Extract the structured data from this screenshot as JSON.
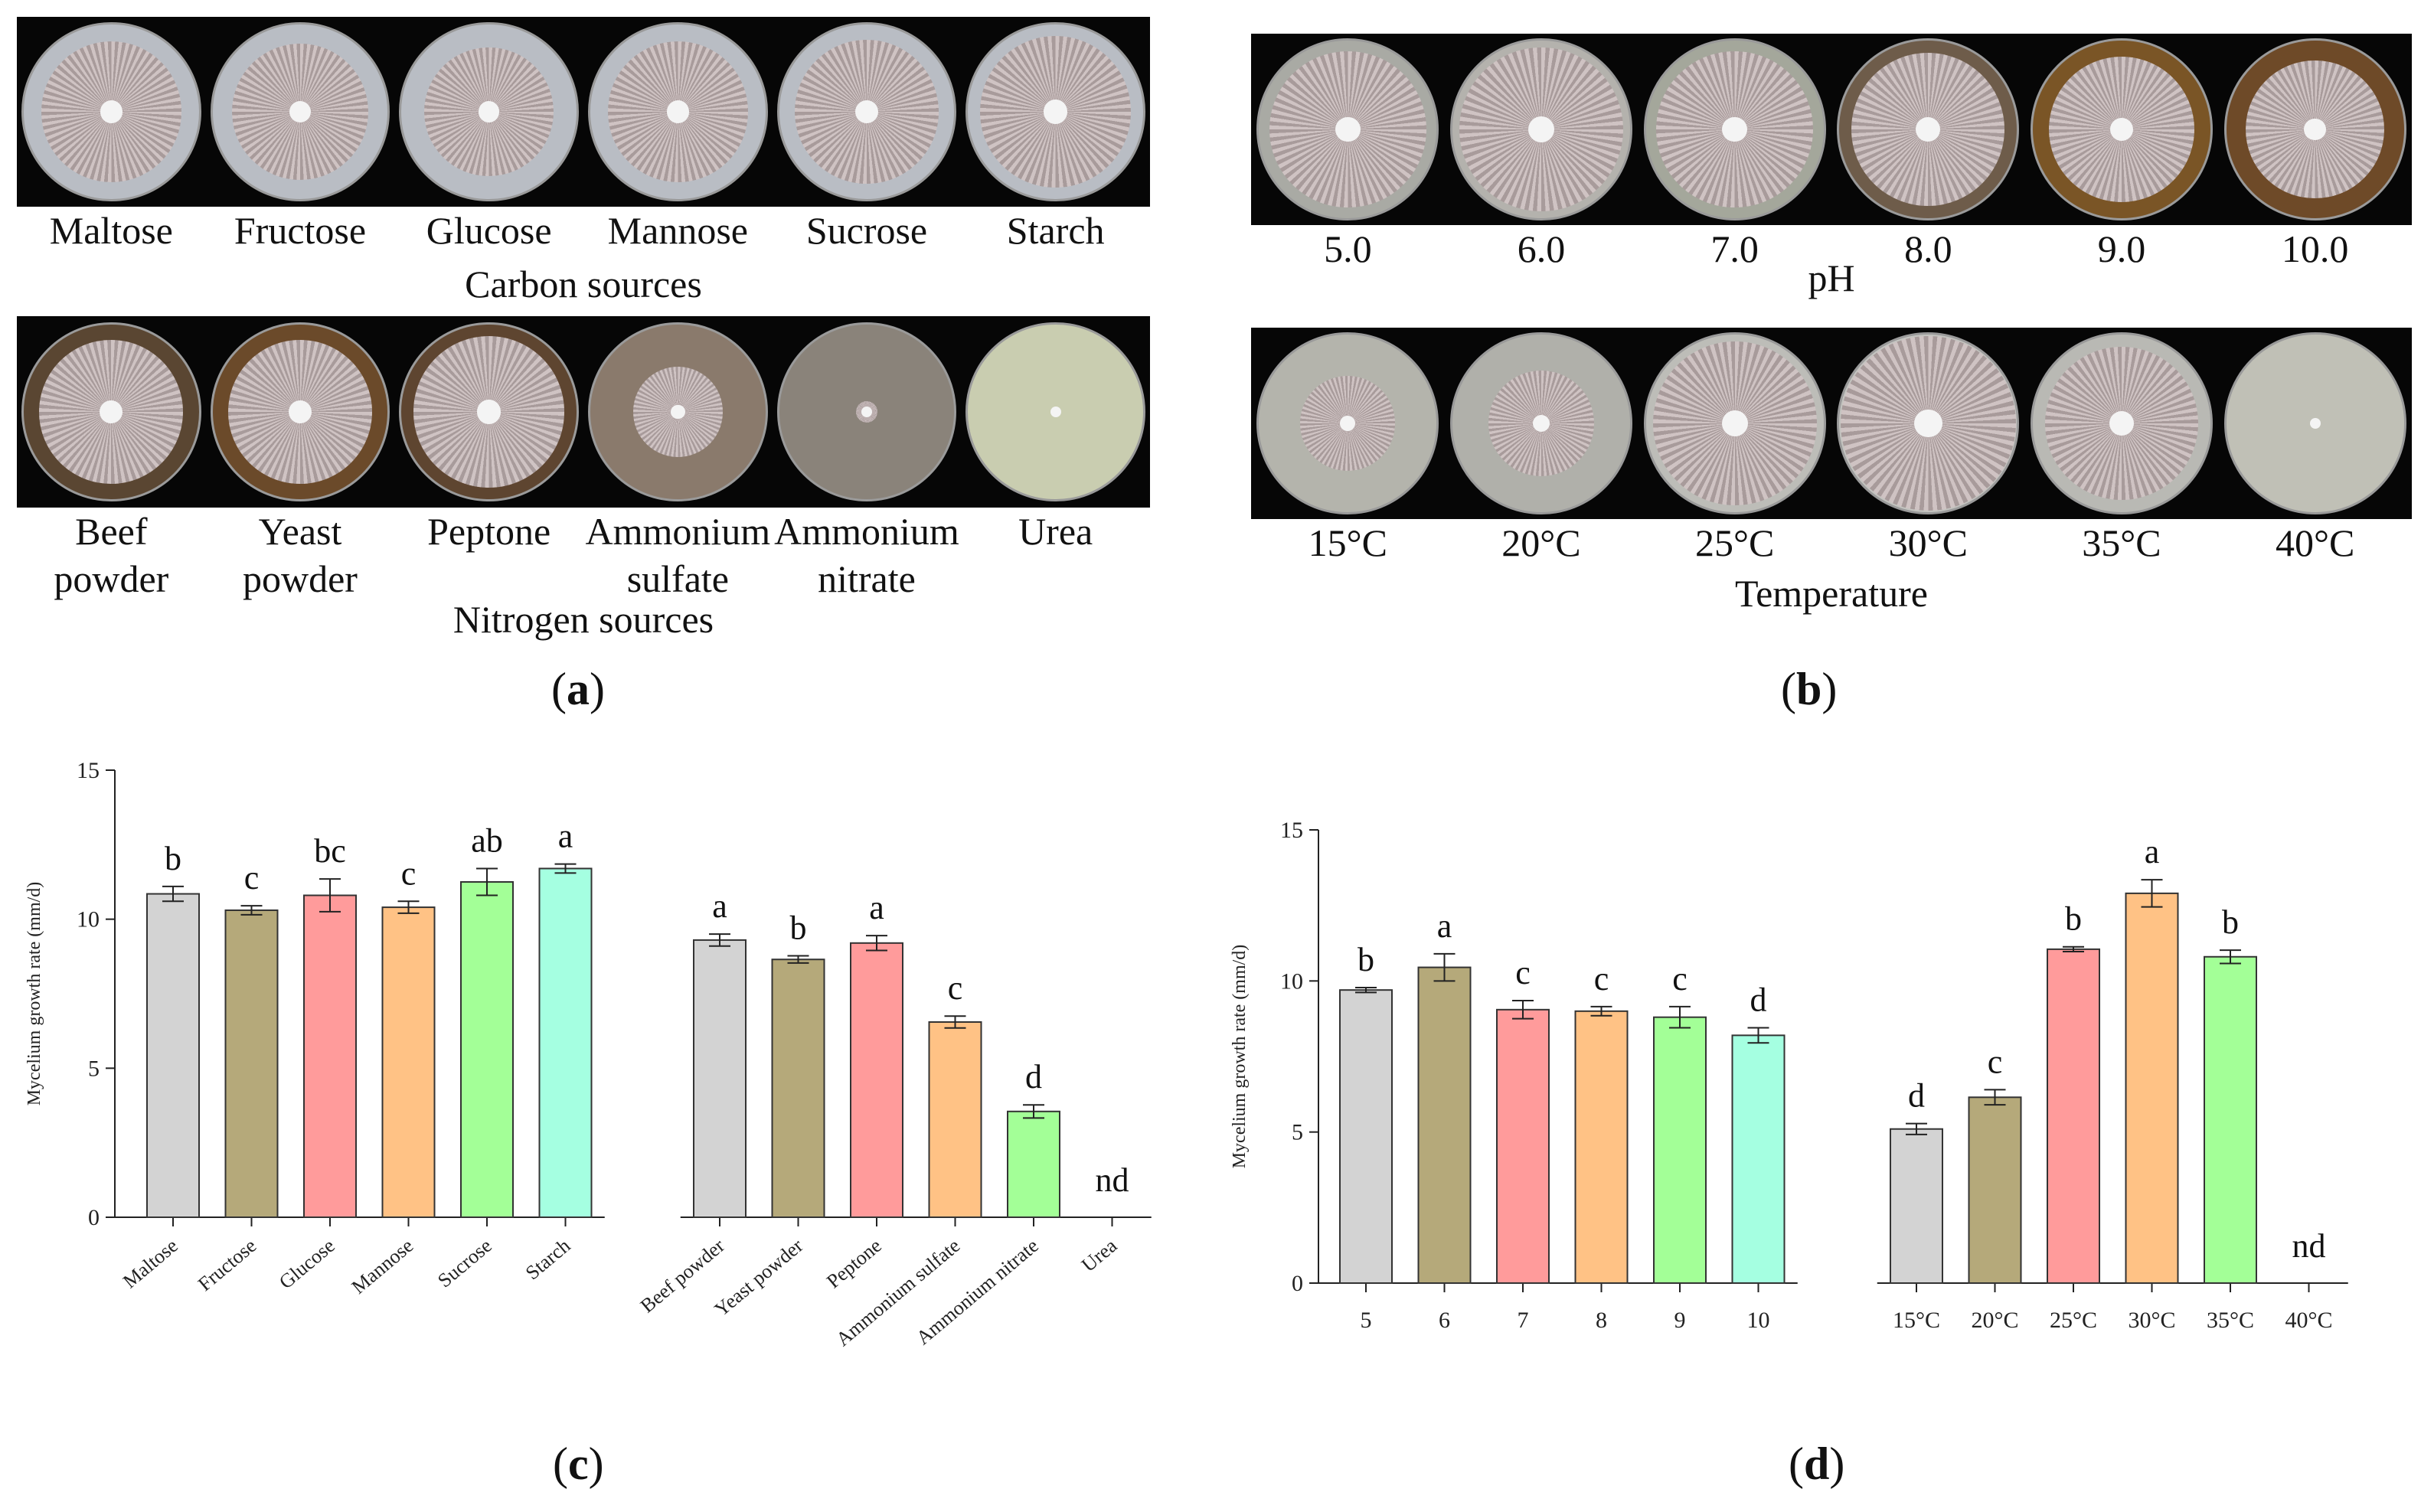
{
  "panel_a": {
    "letter": "a",
    "carbon": {
      "title": "Carbon sources",
      "labels": [
        "Maltose",
        "Fructose",
        "Glucose",
        "Mannose",
        "Sucrose",
        "Starch"
      ]
    },
    "nitrogen": {
      "title": "Nitrogen sources",
      "labels": [
        [
          "Beef",
          "powder"
        ],
        [
          "Yeast",
          "powder"
        ],
        [
          "Peptone",
          ""
        ],
        [
          "Ammonium",
          "sulfate"
        ],
        [
          "Ammonium",
          "nitrate"
        ],
        [
          "Urea",
          ""
        ]
      ]
    }
  },
  "panel_b": {
    "letter": "b",
    "ph": {
      "title": "pH",
      "labels": [
        "5.0",
        "6.0",
        "7.0",
        "8.0",
        "9.0",
        "10.0"
      ]
    },
    "temp": {
      "title": "Temperature",
      "labels": [
        "15°C",
        "20°C",
        "25°C",
        "30°C",
        "35°C",
        "40°C"
      ]
    }
  },
  "panel_c": {
    "letter": "c"
  },
  "panel_d": {
    "letter": "d"
  },
  "colors": {
    "bars": [
      "#d3d3d3",
      "#b5a97a",
      "#ff9b9b",
      "#ffc285",
      "#a3ff97",
      "#a5ffe1"
    ],
    "background_strip": "#060606"
  },
  "chart_data": [
    {
      "id": "c",
      "type": "bar",
      "ylabel": "Mycelium growth rate (mm/d)",
      "xlabel": "",
      "ylim": [
        0,
        15
      ],
      "yticks": [
        0,
        5,
        10,
        15
      ],
      "groups": [
        {
          "categories": [
            "Maltose",
            "Fructose",
            "Glucose",
            "Mannose",
            "Sucrose",
            "Starch"
          ],
          "values": [
            10.85,
            10.3,
            10.8,
            10.4,
            11.25,
            11.7
          ],
          "errors": [
            0.25,
            0.15,
            0.55,
            0.2,
            0.45,
            0.15
          ],
          "letters": [
            "b",
            "c",
            "bc",
            "c",
            "ab",
            "a"
          ]
        },
        {
          "categories": [
            "Beef powder",
            "Yeast powder",
            "Peptone",
            "Ammonium sulfate",
            "Ammonium nitrate",
            "Urea"
          ],
          "values": [
            9.3,
            8.65,
            9.2,
            6.55,
            3.55,
            0
          ],
          "errors": [
            0.2,
            0.12,
            0.25,
            0.2,
            0.22,
            0
          ],
          "letters": [
            "a",
            "b",
            "a",
            "c",
            "d",
            "nd"
          ]
        }
      ]
    },
    {
      "id": "d",
      "type": "bar",
      "ylabel": "Mycelium growth rate (mm/d)",
      "xlabel": "",
      "ylim": [
        0,
        15
      ],
      "yticks": [
        0,
        5,
        10,
        15
      ],
      "groups": [
        {
          "categories": [
            "5",
            "6",
            "7",
            "8",
            "9",
            "10"
          ],
          "values": [
            9.7,
            10.45,
            9.05,
            9.0,
            8.8,
            8.2
          ],
          "errors": [
            0.08,
            0.45,
            0.3,
            0.15,
            0.35,
            0.25
          ],
          "letters": [
            "b",
            "a",
            "c",
            "c",
            "c",
            "d"
          ]
        },
        {
          "categories": [
            "15°C",
            "20°C",
            "25°C",
            "30°C",
            "35°C",
            "40°C"
          ],
          "values": [
            5.1,
            6.15,
            11.05,
            12.9,
            10.8,
            0
          ],
          "errors": [
            0.18,
            0.25,
            0.08,
            0.45,
            0.22,
            0
          ],
          "letters": [
            "d",
            "c",
            "b",
            "a",
            "b",
            "nd"
          ]
        }
      ]
    }
  ]
}
